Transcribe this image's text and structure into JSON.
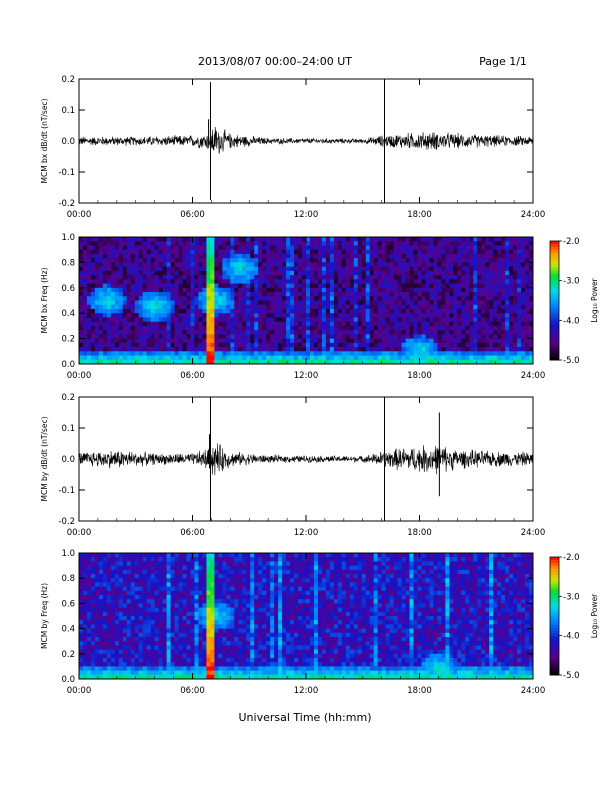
{
  "header": {
    "title": "2013/08/07  00:00–24:00 UT",
    "page": "Page 1/1"
  },
  "footer": {
    "xlabel": "Universal Time (hh:mm)"
  },
  "chart_data": [
    {
      "type": "line",
      "ylabel": "MCM bx dB/dt (nT/sec)",
      "x_unit": "hours UT",
      "xlim": [
        0,
        24
      ],
      "ylim": [
        -0.2,
        0.2
      ],
      "x_ticks": [
        "00:00",
        "06:00",
        "12:00",
        "18:00",
        "24:00"
      ],
      "y_ticks": [
        "0.2",
        "0.1",
        "0.0",
        "-0.1",
        "-0.2"
      ],
      "series": [
        {
          "noise_envelope": {
            "hours": [
              0,
              3,
              6,
              6.9,
              7.1,
              8,
              10,
              15,
              16,
              17,
              18.5,
              20,
              22,
              24
            ],
            "amplitude": [
              0.012,
              0.012,
              0.015,
              0.025,
              0.045,
              0.02,
              0.008,
              0.006,
              0.015,
              0.02,
              0.025,
              0.02,
              0.015,
              0.012
            ]
          },
          "spikes": [
            {
              "hour": 6.95,
              "min": -0.19,
              "max": 0.19
            },
            {
              "hour": 16.15,
              "min": -0.2,
              "max": 0.2
            },
            {
              "hour": 6.85,
              "min": -0.01,
              "max": 0.07
            }
          ]
        }
      ]
    },
    {
      "type": "heatmap",
      "ylabel": "MCM bx Freq (Hz)",
      "xlim": [
        0,
        24
      ],
      "ylim": [
        0,
        1.0
      ],
      "x_ticks": [
        "00:00",
        "06:00",
        "12:00",
        "18:00",
        "24:00"
      ],
      "y_ticks": [
        "1.0",
        "0.8",
        "0.6",
        "0.4",
        "0.2",
        "0.0"
      ],
      "colorbar": {
        "label": "Log₁₀ Power",
        "range": [
          -5.0,
          -2.0
        ],
        "ticks": [
          "-2.0",
          "-3.0",
          "-4.0",
          "-5.0"
        ]
      },
      "features": {
        "background_power": -4.5,
        "low_freq_band_power": -3.0,
        "event_hour": 6.95,
        "event_power": -2.0,
        "patches": [
          {
            "hour": 1.5,
            "freq": 0.5
          },
          {
            "hour": 4.0,
            "freq": 0.45
          },
          {
            "hour": 7.2,
            "freq": 0.5
          },
          {
            "hour": 8.5,
            "freq": 0.75
          },
          {
            "hour": 18.0,
            "freq": 0.1
          }
        ]
      }
    },
    {
      "type": "line",
      "ylabel": "MCM by dB/dt (nT/sec)",
      "x_unit": "hours UT",
      "xlim": [
        0,
        24
      ],
      "ylim": [
        -0.2,
        0.2
      ],
      "x_ticks": [
        "00:00",
        "06:00",
        "12:00",
        "18:00",
        "24:00"
      ],
      "y_ticks": [
        "0.2",
        "0.1",
        "0.0",
        "-0.1",
        "-0.2"
      ],
      "series": [
        {
          "noise_envelope": {
            "hours": [
              0,
              2,
              4,
              6,
              6.9,
              7.1,
              8,
              10,
              15,
              16,
              17,
              18,
              19,
              20,
              22,
              24
            ],
            "amplitude": [
              0.018,
              0.025,
              0.015,
              0.015,
              0.03,
              0.05,
              0.02,
              0.01,
              0.008,
              0.02,
              0.03,
              0.035,
              0.04,
              0.025,
              0.02,
              0.018
            ]
          },
          "spikes": [
            {
              "hour": 6.95,
              "min": -0.2,
              "max": 0.2
            },
            {
              "hour": 16.15,
              "min": -0.2,
              "max": 0.2
            },
            {
              "hour": 19.05,
              "min": -0.12,
              "max": 0.15
            },
            {
              "hour": 6.9,
              "min": -0.03,
              "max": 0.08
            }
          ]
        }
      ]
    },
    {
      "type": "heatmap",
      "ylabel": "MCM by Freq (Hz)",
      "xlim": [
        0,
        24
      ],
      "ylim": [
        0,
        1.0
      ],
      "x_ticks": [
        "00:00",
        "06:00",
        "12:00",
        "18:00",
        "24:00"
      ],
      "y_ticks": [
        "1.0",
        "0.8",
        "0.6",
        "0.4",
        "0.2",
        "0.0"
      ],
      "colorbar": {
        "label": "Log₁₀ Power",
        "range": [
          -5.0,
          -2.0
        ],
        "ticks": [
          "-2.0",
          "-3.0",
          "-4.0",
          "-5.0"
        ]
      },
      "features": {
        "background_power": -4.2,
        "low_freq_band_power": -3.0,
        "event_hour": 6.95,
        "event_power": -2.0,
        "patches": [
          {
            "hour": 7.2,
            "freq": 0.5
          },
          {
            "hour": 19.0,
            "freq": 0.08
          }
        ]
      }
    }
  ]
}
